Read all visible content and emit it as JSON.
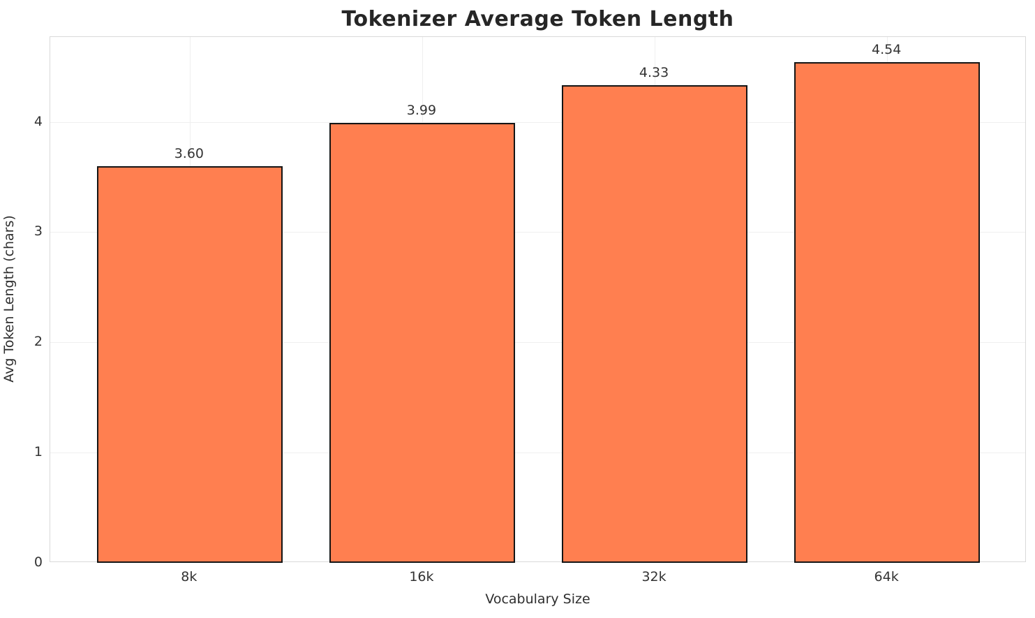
{
  "chart_data": {
    "type": "bar",
    "title": "Tokenizer Average Token Length",
    "xlabel": "Vocabulary Size",
    "ylabel": "Avg Token Length (chars)",
    "categories": [
      "8k",
      "16k",
      "32k",
      "64k"
    ],
    "values": [
      3.6,
      3.99,
      4.33,
      4.54
    ],
    "value_labels": [
      "3.60",
      "3.99",
      "4.33",
      "4.54"
    ],
    "yticks": [
      0,
      1,
      2,
      3,
      4
    ],
    "ylim": [
      0,
      4.77
    ],
    "xlim": [
      -0.6,
      3.6
    ],
    "bar_width": 0.8,
    "grid": true,
    "legend_position": "none",
    "colors": {
      "bar_fill": "#FF7F50",
      "bar_edge": "#141414",
      "grid": "#efefef",
      "spine": "#d9d9d9",
      "title_text": "#262626",
      "tick_text": "#333333",
      "axis_label_text": "#2e2e2e",
      "background": "#ffffff"
    }
  }
}
